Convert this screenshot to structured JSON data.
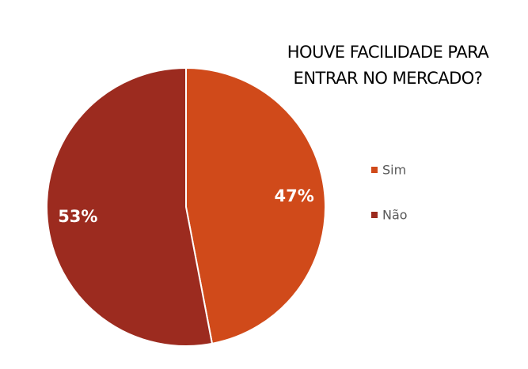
{
  "chart_data": {
    "type": "pie",
    "title": "HOUVE FACILIDADE PARA ENTRAR NO MERCADO?",
    "categories": [
      "Sim",
      "Não"
    ],
    "values": [
      47,
      53
    ],
    "value_labels": [
      "47%",
      "53%"
    ],
    "colors": [
      "#d04a1a",
      "#9c2b1f"
    ],
    "legend": "right"
  }
}
